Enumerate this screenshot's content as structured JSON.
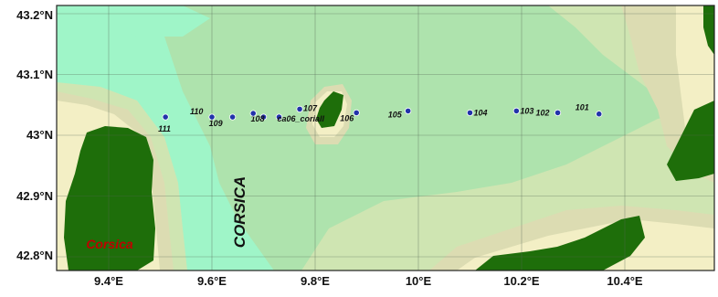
{
  "map": {
    "lat_ticks": [
      "43.2°N",
      "43.1°N",
      "43°N",
      "42.9°N",
      "42.8°N"
    ],
    "lon_ticks": [
      "9.4°E",
      "9.6°E",
      "9.8°E",
      "10°E",
      "10.2°E",
      "10.4°E"
    ],
    "region_label": "CORSICA",
    "island_label": "Corsica",
    "colors": {
      "land": "#1e6e0a",
      "deep_sea": "#9ff5c8",
      "mid_sea": "#aee3ad",
      "shallow_sea": "#cfe5b2",
      "coast_band": "#dcdcb2",
      "beach": "#f3efc5",
      "station_fill": "#2233aa",
      "island_label": "#c00000"
    }
  },
  "stations": [
    {
      "id": "101",
      "lon": 10.35,
      "lat": 43.035
    },
    {
      "id": "102",
      "lon": 10.27,
      "lat": 43.037
    },
    {
      "id": "103",
      "lon": 10.19,
      "lat": 43.04
    },
    {
      "id": "104",
      "lon": 10.1,
      "lat": 43.037
    },
    {
      "id": "105",
      "lon": 9.98,
      "lat": 43.04
    },
    {
      "id": "106",
      "lon": 9.88,
      "lat": 43.037
    },
    {
      "id": "107",
      "lon": 9.77,
      "lat": 43.043
    },
    {
      "id": "ca06_coriall",
      "lon": 9.73,
      "lat": 43.03
    },
    {
      "id": "108",
      "lon": 9.7,
      "lat": 43.03
    },
    {
      "id": "",
      "lon": 9.68,
      "lat": 43.036
    },
    {
      "id": "109",
      "lon": 9.64,
      "lat": 43.03
    },
    {
      "id": "110",
      "lon": 9.6,
      "lat": 43.03
    },
    {
      "id": "111",
      "lon": 9.51,
      "lat": 43.03
    }
  ]
}
